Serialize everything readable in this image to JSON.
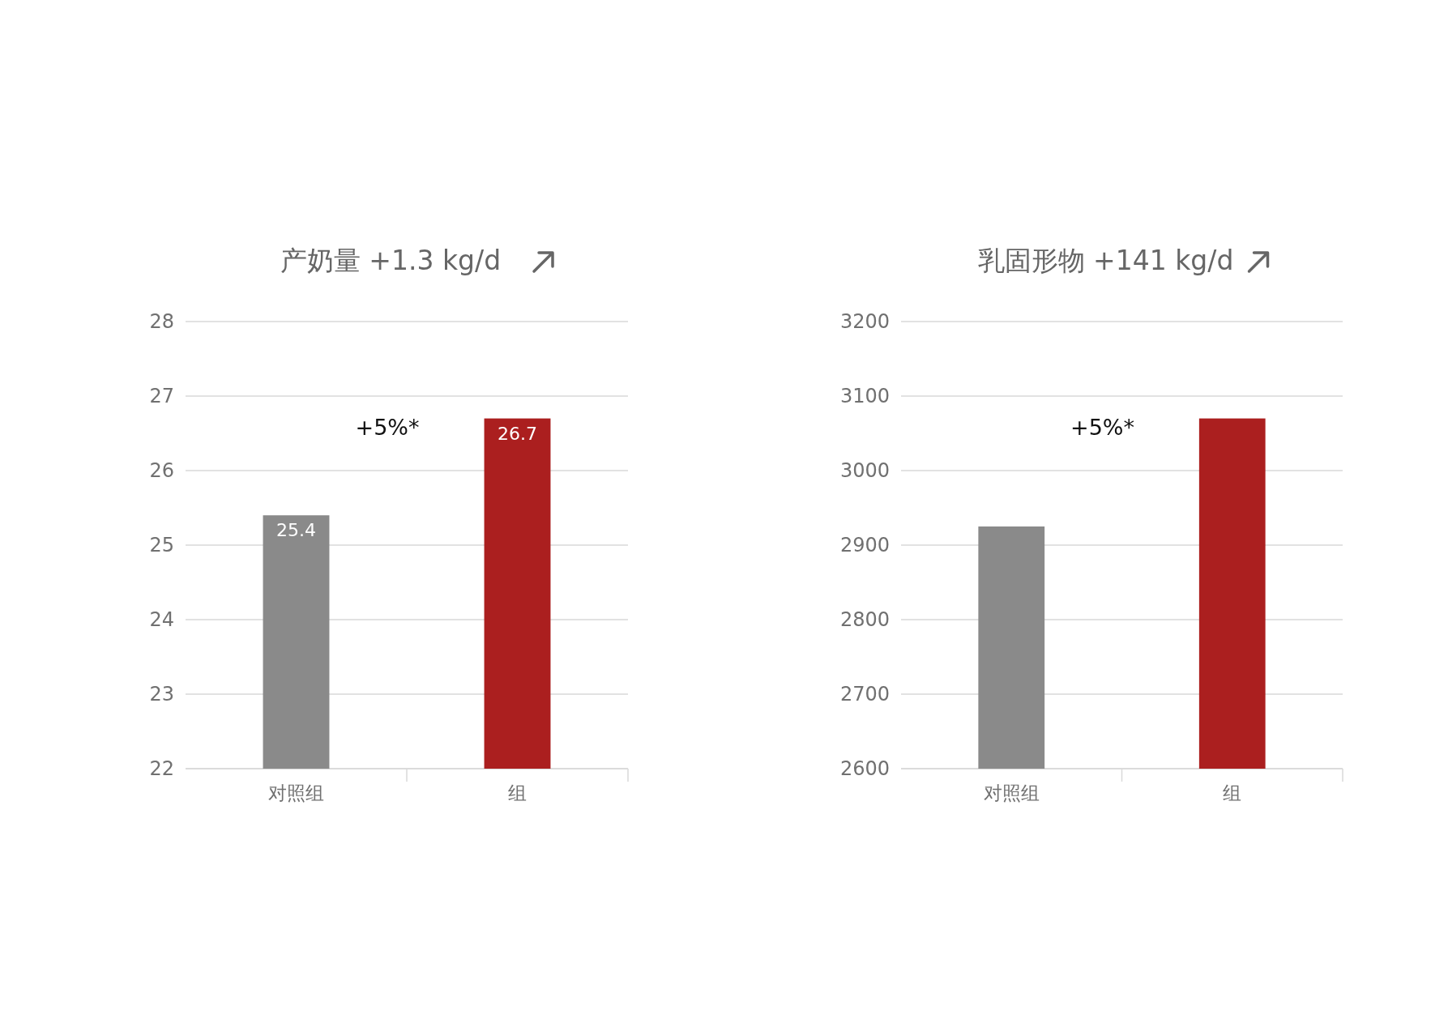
{
  "chart_data": [
    {
      "type": "bar",
      "title": "产奶量 +1.3 kg/d",
      "categories": [
        "对照组",
        "组"
      ],
      "values": [
        25.4,
        26.7
      ],
      "colors": [
        "#8a8a8a",
        "#ab1f1f"
      ],
      "ylim": [
        22,
        28
      ],
      "yticks": [
        22,
        23,
        24,
        25,
        26,
        27,
        28
      ],
      "grid": "y",
      "value_labels": [
        "25.4",
        "26.7"
      ],
      "annotations": [
        "+5%*"
      ]
    },
    {
      "type": "bar",
      "title": "乳固形物 +141 kg/d",
      "categories": [
        "对照组",
        "组"
      ],
      "values": [
        2925,
        3070
      ],
      "colors": [
        "#8a8a8a",
        "#ab1f1f"
      ],
      "ylim": [
        2600,
        3200
      ],
      "yticks": [
        2600,
        2700,
        2800,
        2900,
        3000,
        3100,
        3200
      ],
      "grid": "y",
      "annotations": [
        "+5%*"
      ]
    }
  ]
}
